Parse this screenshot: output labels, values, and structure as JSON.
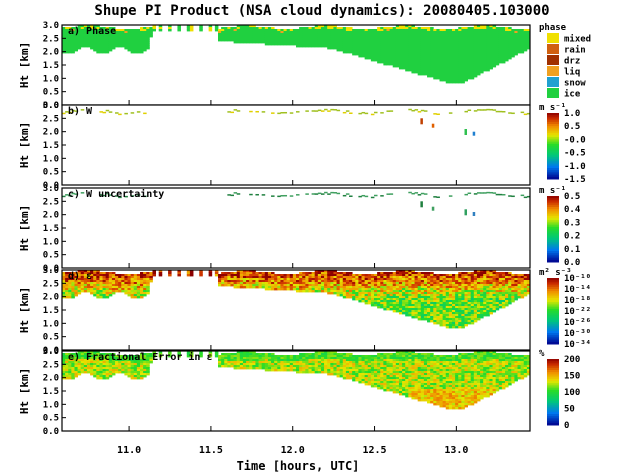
{
  "chart_data": {
    "type": "heatmap",
    "title": "Shupe PI Product (NSA cloud dynamics): 20080405.103000",
    "xlabel": "Time [hours, UTC]",
    "x_ticks": [
      "11.0",
      "11.5",
      "12.0",
      "12.5",
      "13.0"
    ],
    "x_tick_values": [
      11.0,
      11.5,
      12.0,
      12.5,
      13.0
    ],
    "xlim": [
      10.59,
      13.45
    ],
    "panels": [
      {
        "id": "a",
        "label": "a) Phase",
        "ylabel": "Ht [km]",
        "ylim": [
          0.0,
          3.0
        ],
        "y_ticks": [
          "0.0",
          "0.5",
          "1.0",
          "1.5",
          "2.0",
          "2.5",
          "3.0"
        ],
        "colorbar_title": "phase",
        "categories": [
          "mixed",
          "rain",
          "drz",
          "liq",
          "snow",
          "ice"
        ],
        "category_colors": [
          "#f0e000",
          "#d06010",
          "#a03000",
          "#f0a020",
          "#20a0d0",
          "#20d040"
        ],
        "field": "phase"
      },
      {
        "id": "b",
        "label": "b) W",
        "ylabel": "Ht [km]",
        "ylim": [
          0.0,
          3.0
        ],
        "y_ticks": [
          "0.0",
          "0.5",
          "1.0",
          "1.5",
          "2.0",
          "2.5",
          "3.0"
        ],
        "colorbar_title": "m s⁻¹",
        "colorbar_ticks": [
          "1.0",
          "0.5",
          "-0.0",
          "-0.5",
          "-1.0",
          "-1.5"
        ],
        "field": "w"
      },
      {
        "id": "c",
        "label": "c) W uncertainty",
        "ylabel": "Ht [km]",
        "ylim": [
          0.0,
          3.0
        ],
        "y_ticks": [
          "0.0",
          "0.5",
          "1.0",
          "1.5",
          "2.0",
          "2.5",
          "3.0"
        ],
        "colorbar_title": "m s⁻¹",
        "colorbar_ticks": [
          "0.5",
          "0.4",
          "0.3",
          "0.2",
          "0.1",
          "0.0"
        ],
        "field": "w_unc"
      },
      {
        "id": "d",
        "label": "d) ε",
        "ylabel": "Ht [km]",
        "ylim": [
          0.0,
          3.0
        ],
        "y_ticks": [
          "0.0",
          "0.5",
          "1.0",
          "1.5",
          "2.0",
          "2.5",
          "3.0"
        ],
        "colorbar_title": "m² s⁻³",
        "colorbar_ticks": [
          "10⁻¹⁰",
          "10⁻¹⁴",
          "10⁻¹⁸",
          "10⁻²²",
          "10⁻²⁶",
          "10⁻³⁰",
          "10⁻³⁴"
        ],
        "field": "eps"
      },
      {
        "id": "e",
        "label": "e) Fractional Error in ε",
        "ylabel": "Ht [km]",
        "ylim": [
          0.0,
          3.0
        ],
        "y_ticks": [
          "0.0",
          "0.5",
          "1.0",
          "1.5",
          "2.0",
          "2.5",
          "3.0"
        ],
        "colorbar_title": "%",
        "colorbar_ticks": [
          "200",
          "150",
          "100",
          "50",
          "0"
        ],
        "field": "err"
      }
    ]
  }
}
